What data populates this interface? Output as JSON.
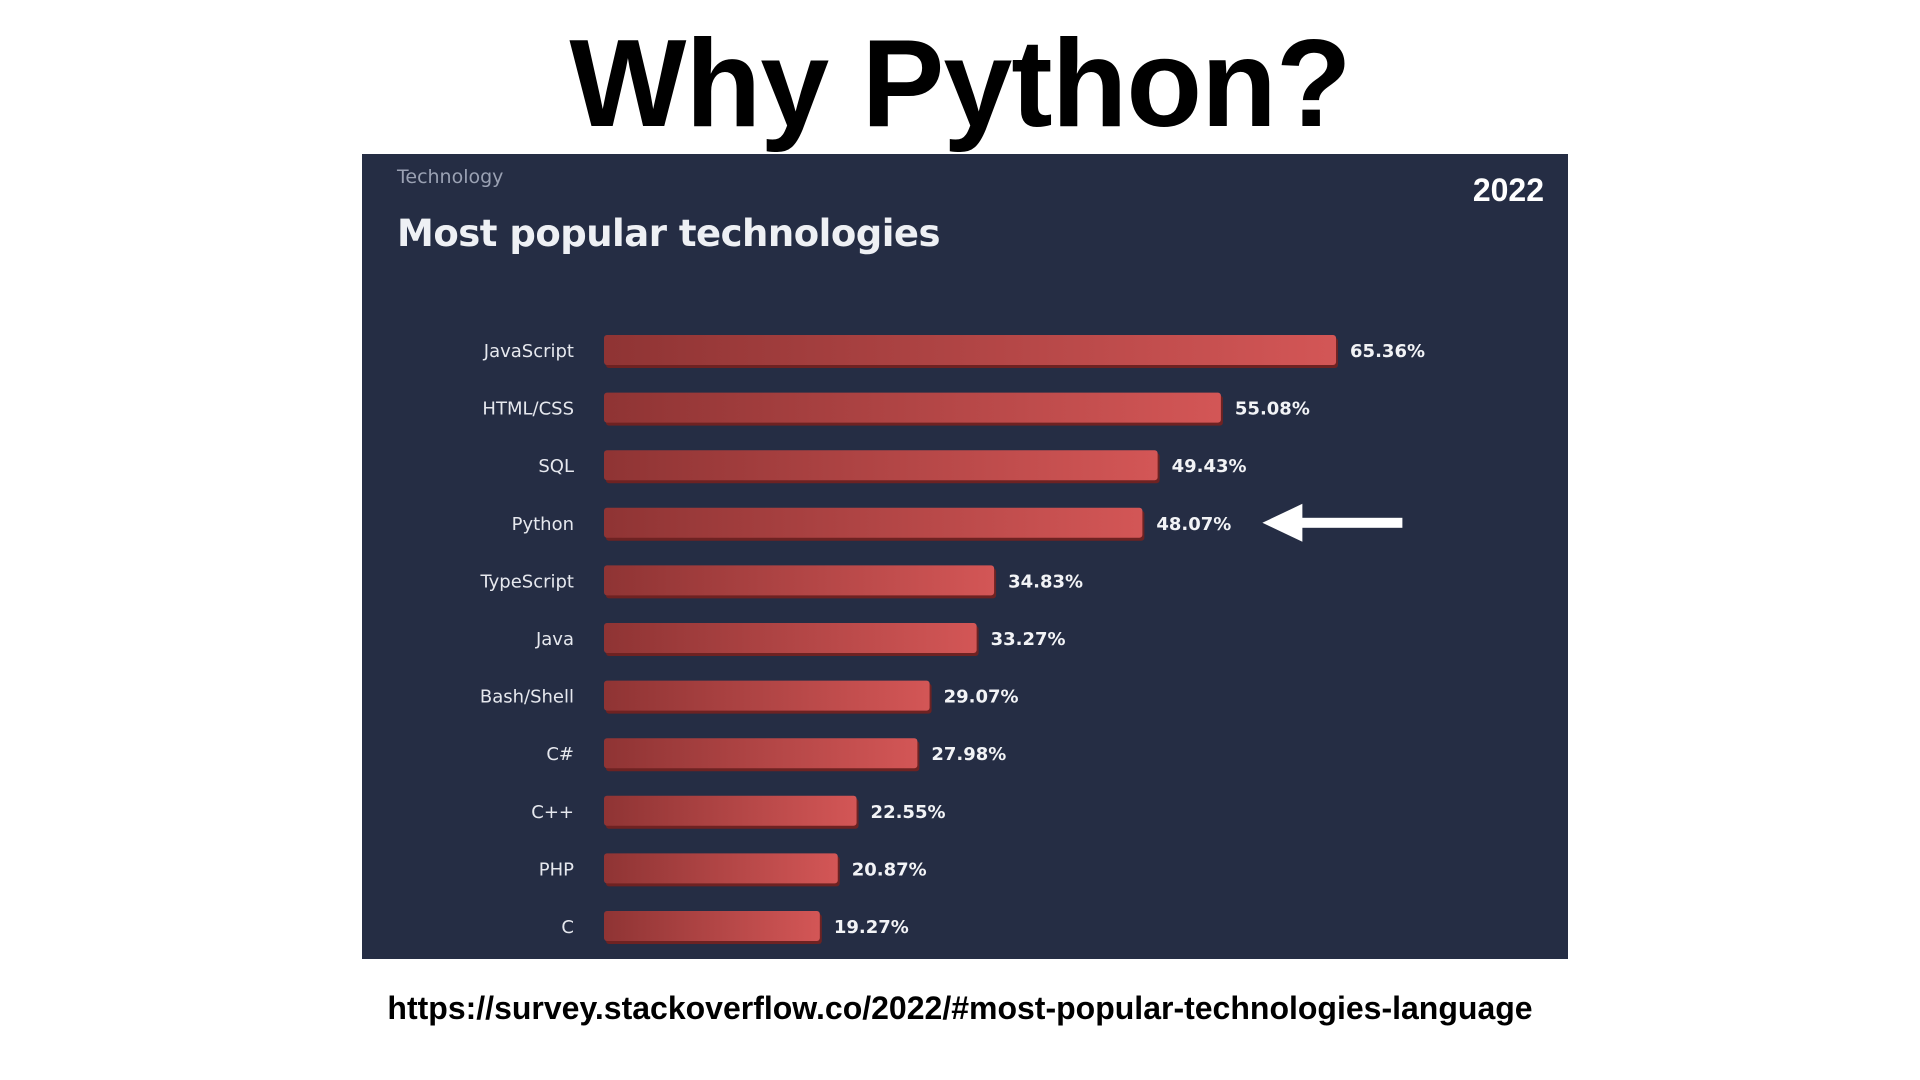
{
  "slide": {
    "title": "Why Python?",
    "source_url": "https://survey.stackoverflow.co/2022/#most-popular-technologies-language"
  },
  "panel": {
    "section_label": "Technology",
    "year_badge": "2022",
    "background_color": "#252d44"
  },
  "chart_data": {
    "type": "bar",
    "orientation": "horizontal",
    "title": "Most popular technologies",
    "categories": [
      "JavaScript",
      "HTML/CSS",
      "SQL",
      "Python",
      "TypeScript",
      "Java",
      "Bash/Shell",
      "C#",
      "C++",
      "PHP",
      "C"
    ],
    "values": [
      65.36,
      55.08,
      49.43,
      48.07,
      34.83,
      33.27,
      29.07,
      27.98,
      22.55,
      20.87,
      19.27
    ],
    "value_labels": [
      "65.36%",
      "55.08%",
      "49.43%",
      "48.07%",
      "34.83%",
      "33.27%",
      "29.07%",
      "27.98%",
      "22.55%",
      "20.87%",
      "19.27%"
    ],
    "unit": "%",
    "xlim": [
      0,
      100
    ],
    "grid": false,
    "bar_color_start": "#8f3434",
    "bar_color_end": "#d35656",
    "highlight": {
      "category": "Python",
      "marker": "left-arrow",
      "color": "#ffffff"
    }
  }
}
